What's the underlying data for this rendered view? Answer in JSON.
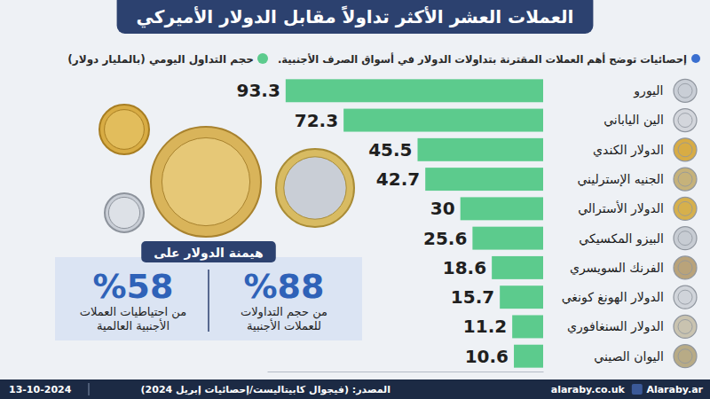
{
  "chart_data": {
    "type": "bar",
    "orientation": "horizontal",
    "title": "العملات العشر الأكثر تداولاً مقابل الدولار الأميركي",
    "subtitle": "إحصائيات توضح أهم العملات المقترنة بتداولات الدولار في أسواق الصرف الأجنبية.",
    "categories": [
      "اليورو",
      "الين الياباني",
      "الدولار الكندي",
      "الجنيه الإسترليني",
      "الدولار الأسترالي",
      "البيزو المكسيكي",
      "الفرنك السويسري",
      "الدولار الهونغ كونغي",
      "الدولار السنغافوري",
      "اليوان الصيني"
    ],
    "series": [
      {
        "name": "حجم التداول اليومي (بالمليار دولار)",
        "color": "#5ccb8d",
        "values": [
          93.3,
          72.3,
          45.5,
          42.7,
          30,
          25.6,
          18.6,
          15.7,
          11.2,
          10.6
        ]
      }
    ],
    "xlim": [
      0,
      100
    ],
    "xticks": [],
    "tick_labels": "y",
    "data_labels": true,
    "legend": "top-left",
    "grid": false
  },
  "panel": {
    "title": "هيمنة الدولار على",
    "stats": [
      {
        "value": 88,
        "label": "%88",
        "text": "من حجم التداولات للعملات الأجنبية"
      },
      {
        "value": 58,
        "label": "%58",
        "text": "من احتياطيات العملات الأجنبية العالمية"
      }
    ]
  },
  "footer": {
    "date": "13-10-2024",
    "source": "المصدر: (فيجوال كابيتاليست/إحصائيات إبريل 2024)",
    "website": "alaraby.co.uk",
    "social": "Alaraby.ar"
  }
}
